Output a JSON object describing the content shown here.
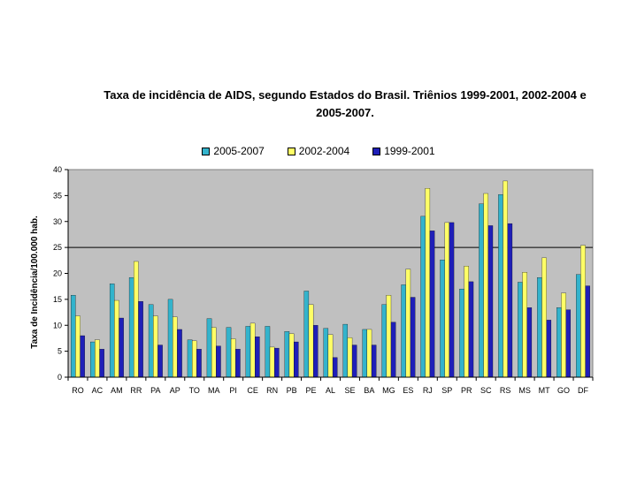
{
  "chart_data": {
    "type": "bar",
    "title_line1": "Taxa de incidência de AIDS, segundo Estados do Brasil. Triênios 1999-2001, 2002-2004 e",
    "title_line2": "2005-2007.",
    "xlabel": "",
    "ylabel": "Taxa de Incidência/100.000 hab.",
    "ylim": [
      0,
      40
    ],
    "yticks": [
      0,
      5,
      10,
      15,
      20,
      25,
      30,
      35,
      40
    ],
    "reference_line": 25,
    "grid": false,
    "legend_position": "top",
    "categories": [
      "RO",
      "AC",
      "AM",
      "RR",
      "PA",
      "AP",
      "TO",
      "MA",
      "PI",
      "CE",
      "RN",
      "PB",
      "PE",
      "AL",
      "SE",
      "BA",
      "MG",
      "ES",
      "RJ",
      "SP",
      "PR",
      "SC",
      "RS",
      "MS",
      "MT",
      "GO",
      "DF"
    ],
    "series": [
      {
        "name": "2005-2007",
        "color": "#33b3cc",
        "values": [
          15.8,
          6.8,
          18.0,
          19.2,
          14.0,
          15.0,
          7.2,
          11.3,
          9.6,
          9.8,
          9.8,
          8.8,
          16.6,
          9.4,
          10.2,
          9.2,
          14.0,
          17.8,
          31.0,
          22.6,
          17.0,
          33.4,
          35.2,
          18.3,
          19.2,
          13.4,
          19.8
        ]
      },
      {
        "name": "2002-2004",
        "color": "#ffff66",
        "values": [
          11.8,
          7.2,
          14.8,
          22.3,
          11.8,
          11.6,
          7.0,
          9.6,
          7.4,
          10.4,
          5.8,
          8.4,
          14.0,
          8.2,
          7.6,
          9.2,
          15.8,
          20.8,
          36.4,
          29.8,
          21.4,
          35.4,
          37.8,
          20.2,
          23.0,
          16.2,
          25.4
        ]
      },
      {
        "name": "1999-2001",
        "color": "#1f1fb8",
        "values": [
          8.0,
          5.4,
          11.4,
          14.6,
          6.2,
          9.2,
          5.4,
          6.0,
          5.4,
          7.8,
          5.6,
          6.8,
          10.0,
          3.8,
          6.2,
          6.2,
          10.6,
          15.4,
          28.2,
          29.8,
          18.4,
          29.2,
          29.6,
          13.4,
          11.0,
          13.0,
          17.6
        ]
      }
    ]
  }
}
